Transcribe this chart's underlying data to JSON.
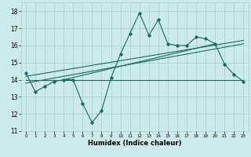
{
  "title": "",
  "xlabel": "Humidex (Indice chaleur)",
  "ylabel": "",
  "bg_color": "#cceae7",
  "grid_color": "#aad4d0",
  "line_color": "#1a6b5a",
  "xlim": [
    -0.5,
    23.5
  ],
  "ylim": [
    11,
    18.5
  ],
  "xticks": [
    0,
    1,
    2,
    3,
    4,
    5,
    6,
    7,
    8,
    9,
    10,
    11,
    12,
    13,
    14,
    15,
    16,
    17,
    18,
    19,
    20,
    21,
    22,
    23
  ],
  "yticks": [
    11,
    12,
    13,
    14,
    15,
    16,
    17,
    18
  ],
  "main_x": [
    0,
    1,
    2,
    3,
    4,
    5,
    6,
    7,
    8,
    9,
    10,
    11,
    12,
    13,
    14,
    15,
    16,
    17,
    18,
    19,
    20,
    21,
    22,
    23
  ],
  "main_y": [
    14.4,
    13.3,
    13.6,
    13.9,
    14.0,
    14.0,
    12.6,
    11.5,
    12.2,
    14.1,
    15.5,
    16.7,
    17.9,
    16.6,
    17.5,
    16.1,
    16.0,
    16.0,
    16.5,
    16.4,
    16.1,
    14.9,
    14.3,
    13.9
  ],
  "flat_line_x": [
    0,
    23
  ],
  "flat_line_y": [
    14.0,
    14.0
  ],
  "trend1_x": [
    0,
    23
  ],
  "trend1_y": [
    13.8,
    16.1
  ],
  "trend2_x": [
    0,
    23
  ],
  "trend2_y": [
    14.2,
    16.3
  ],
  "trend3_x": [
    4,
    20
  ],
  "trend3_y": [
    14.0,
    16.1
  ]
}
